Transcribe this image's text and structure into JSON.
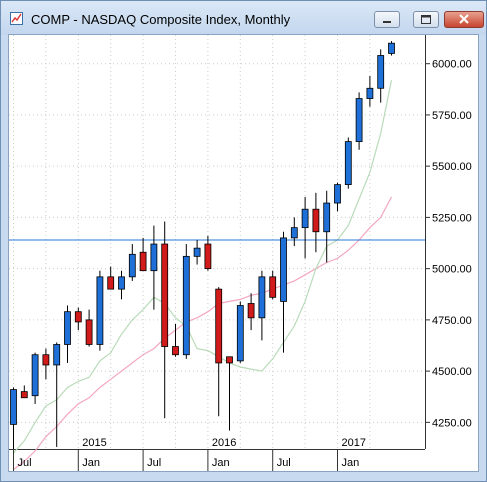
{
  "window": {
    "title": "COMP - NASDAQ Composite Index, Monthly",
    "icons": {
      "app": "chart-app-icon",
      "minimize": "minimize-icon",
      "maximize": "maximize-icon",
      "close": "close-icon"
    }
  },
  "colors": {
    "up_candle": "#1e6fd8",
    "down_candle": "#d11a1a",
    "ma_fast": "#b9dbb9",
    "ma_slow": "#f4a6bf",
    "horizontal_line": "#2a78d0",
    "grid": "#cccccc"
  },
  "chart_data": {
    "type": "candlestick",
    "y_axis": {
      "ticks": [
        "4250.00",
        "4500.00",
        "4750.00",
        "5000.00",
        "5250.00",
        "5500.00",
        "5750.00",
        "6000.00"
      ],
      "range": [
        4120,
        6140
      ],
      "side": "right"
    },
    "x_axis": {
      "year_labels": [
        {
          "label": "2015",
          "month_index": 6
        },
        {
          "label": "2016",
          "month_index": 18
        },
        {
          "label": "2017",
          "month_index": 30
        }
      ],
      "month_labels": [
        {
          "label": "Jul",
          "month_index": 0
        },
        {
          "label": "Jan",
          "month_index": 6
        },
        {
          "label": "Jul",
          "month_index": 12
        },
        {
          "label": "Jan",
          "month_index": 18
        },
        {
          "label": "Jul",
          "month_index": 24
        },
        {
          "label": "Jan",
          "month_index": 30
        }
      ]
    },
    "horizontal_line": 5140,
    "grid": true,
    "candles": [
      {
        "o": 4240,
        "h": 4420,
        "l": 4120,
        "c": 4410
      },
      {
        "o": 4400,
        "h": 4430,
        "l": 4390,
        "c": 4370
      },
      {
        "o": 4380,
        "h": 4590,
        "l": 4340,
        "c": 4580
      },
      {
        "o": 4580,
        "h": 4610,
        "l": 4460,
        "c": 4530
      },
      {
        "o": 4530,
        "h": 4640,
        "l": 4130,
        "c": 4630
      },
      {
        "o": 4630,
        "h": 4820,
        "l": 4540,
        "c": 4790
      },
      {
        "o": 4790,
        "h": 4810,
        "l": 4700,
        "c": 4740
      },
      {
        "o": 4750,
        "h": 4800,
        "l": 4620,
        "c": 4630
      },
      {
        "o": 4630,
        "h": 4990,
        "l": 4600,
        "c": 4960
      },
      {
        "o": 4960,
        "h": 5010,
        "l": 4910,
        "c": 4900
      },
      {
        "o": 4900,
        "h": 4990,
        "l": 4850,
        "c": 4960
      },
      {
        "o": 4960,
        "h": 5120,
        "l": 4940,
        "c": 5070
      },
      {
        "o": 5080,
        "h": 5150,
        "l": 4990,
        "c": 4990
      },
      {
        "o": 4990,
        "h": 5210,
        "l": 4800,
        "c": 5120
      },
      {
        "o": 5120,
        "h": 5230,
        "l": 4270,
        "c": 4620
      },
      {
        "o": 4620,
        "h": 4730,
        "l": 4570,
        "c": 4580
      },
      {
        "o": 4580,
        "h": 5120,
        "l": 4560,
        "c": 5060
      },
      {
        "o": 5060,
        "h": 5140,
        "l": 5020,
        "c": 5100
      },
      {
        "o": 5120,
        "h": 5160,
        "l": 4990,
        "c": 5000
      },
      {
        "o": 4900,
        "h": 4910,
        "l": 4280,
        "c": 4540
      },
      {
        "o": 4570,
        "h": 4570,
        "l": 4210,
        "c": 4540
      },
      {
        "o": 4550,
        "h": 4840,
        "l": 4540,
        "c": 4820
      },
      {
        "o": 4830,
        "h": 4880,
        "l": 4700,
        "c": 4760
      },
      {
        "o": 4760,
        "h": 4990,
        "l": 4650,
        "c": 4960
      },
      {
        "o": 4960,
        "h": 4990,
        "l": 4850,
        "c": 4860
      },
      {
        "o": 4840,
        "h": 5180,
        "l": 4590,
        "c": 5150
      },
      {
        "o": 5150,
        "h": 5250,
        "l": 5110,
        "c": 5200
      },
      {
        "o": 5200,
        "h": 5350,
        "l": 5050,
        "c": 5290
      },
      {
        "o": 5290,
        "h": 5370,
        "l": 5080,
        "c": 5180
      },
      {
        "o": 5180,
        "h": 5380,
        "l": 5030,
        "c": 5320
      },
      {
        "o": 5320,
        "h": 5420,
        "l": 5280,
        "c": 5410
      },
      {
        "o": 5410,
        "h": 5640,
        "l": 5390,
        "c": 5620
      },
      {
        "o": 5620,
        "h": 5860,
        "l": 5580,
        "c": 5830
      },
      {
        "o": 5830,
        "h": 5940,
        "l": 5790,
        "c": 5880
      },
      {
        "o": 5880,
        "h": 6070,
        "l": 5810,
        "c": 6040
      },
      {
        "o": 6050,
        "h": 6110,
        "l": 6040,
        "c": 6100
      }
    ],
    "ma_fast": [
      4100,
      4160,
      4250,
      4330,
      4360,
      4420,
      4450,
      4470,
      4550,
      4590,
      4680,
      4750,
      4800,
      4860,
      4830,
      4760,
      4720,
      4610,
      4600,
      4570,
      4540,
      4520,
      4510,
      4500,
      4560,
      4640,
      4720,
      4840,
      5000,
      5110,
      5140,
      5210,
      5340,
      5470,
      5660,
      5920
    ],
    "ma_slow": [
      4020,
      4060,
      4110,
      4180,
      4230,
      4290,
      4340,
      4370,
      4420,
      4460,
      4500,
      4540,
      4580,
      4610,
      4660,
      4700,
      4740,
      4760,
      4790,
      4830,
      4840,
      4850,
      4870,
      4880,
      4900,
      4920,
      4940,
      4970,
      5000,
      5030,
      5050,
      5090,
      5140,
      5200,
      5250,
      5350
    ]
  }
}
